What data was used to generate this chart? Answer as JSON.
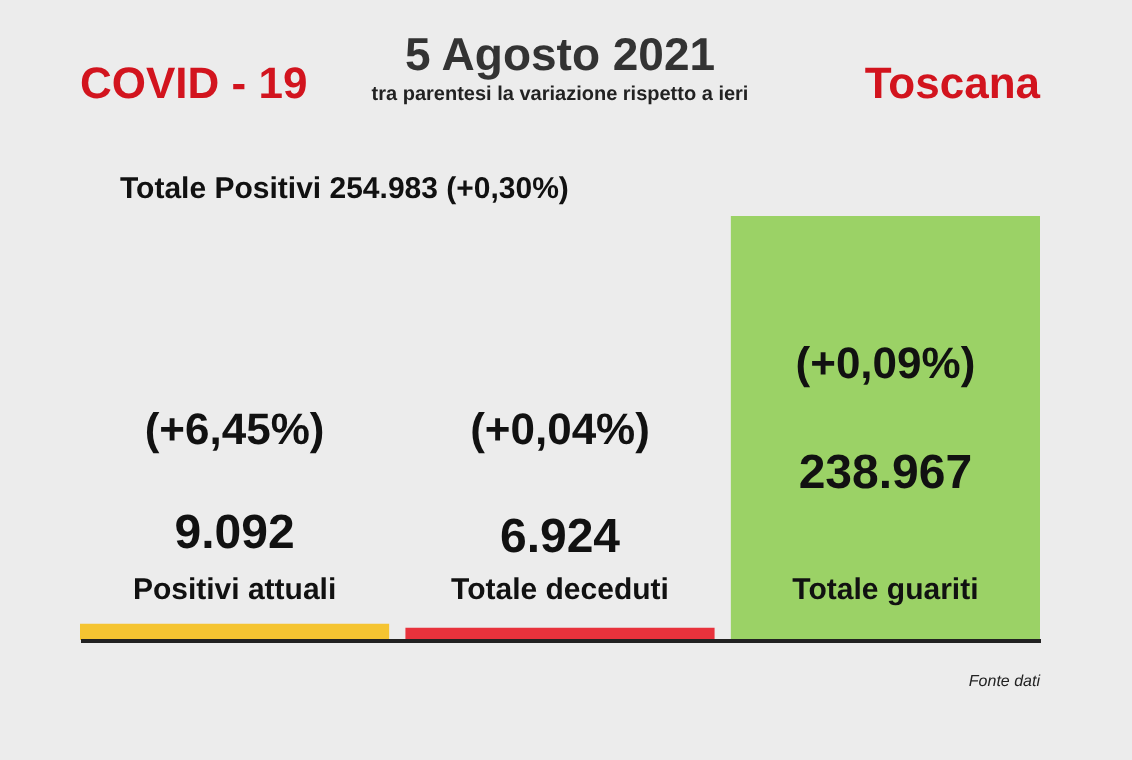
{
  "chart_data": {
    "type": "bar",
    "title": "5 Agosto 2021",
    "subtitle": "tra parentesi la variazione rispetto a ieri",
    "categories": [
      "Positivi attuali",
      "Totale deceduti",
      "Totale guariti"
    ],
    "values": [
      9092,
      6924,
      238967
    ],
    "colors": [
      "#f5c431",
      "#e8323c",
      "#9bd266"
    ],
    "value_labels": [
      "9.092",
      "6.924",
      "238.967"
    ],
    "annotations": [
      "COVID - 19",
      "Toscana",
      "Totale Positivi   254.983 (+0,30%)",
      "(+6,45%)",
      "(+0,04%)",
      "(+0,09%)",
      "Fonte dati"
    ]
  }
}
